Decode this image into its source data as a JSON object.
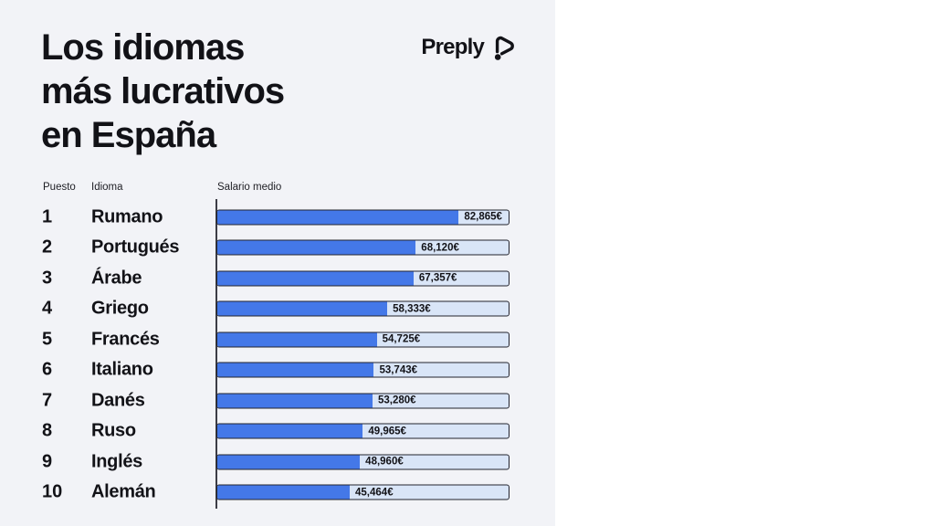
{
  "page": {
    "background": "#ffffff",
    "panel_background": "#f2f3f7"
  },
  "brand": {
    "name": "Preply"
  },
  "title": {
    "line1": "Los idiomas",
    "line2": "más lucrativos",
    "line3": "en España"
  },
  "table_headers": {
    "rank": "Puesto",
    "language": "Idioma",
    "salary": "Salario medio"
  },
  "chart_data": {
    "type": "bar",
    "orientation": "horizontal",
    "title": "Los idiomas más lucrativos en España",
    "xlabel": "Salario medio",
    "xlim": [
      0,
      100000
    ],
    "grid": false,
    "legend": false,
    "categories": [
      "Rumano",
      "Portugués",
      "Árabe",
      "Griego",
      "Francés",
      "Italiano",
      "Danés",
      "Ruso",
      "Inglés",
      "Alemán"
    ],
    "values": [
      82865,
      68120,
      67357,
      58333,
      54725,
      53743,
      53280,
      49965,
      48960,
      45464
    ],
    "rows": [
      {
        "rank": "1",
        "language": "Rumano",
        "value": 82865,
        "label": "82,865€"
      },
      {
        "rank": "2",
        "language": "Portugués",
        "value": 68120,
        "label": "68,120€"
      },
      {
        "rank": "3",
        "language": "Árabe",
        "value": 67357,
        "label": "67,357€"
      },
      {
        "rank": "4",
        "language": "Griego",
        "value": 58333,
        "label": "58,333€"
      },
      {
        "rank": "5",
        "language": "Francés",
        "value": 54725,
        "label": "54,725€"
      },
      {
        "rank": "6",
        "language": "Italiano",
        "value": 53743,
        "label": "53,743€"
      },
      {
        "rank": "7",
        "language": "Danés",
        "value": 53280,
        "label": "53,280€"
      },
      {
        "rank": "8",
        "language": "Ruso",
        "value": 49965,
        "label": "49,965€"
      },
      {
        "rank": "9",
        "language": "Inglés",
        "value": 48960,
        "label": "48,960€"
      },
      {
        "rank": "10",
        "language": "Alemán",
        "value": 45464,
        "label": "45,464€"
      }
    ],
    "colors": {
      "bar_fill": "#4478e8",
      "bar_track": "#d9e5f7",
      "bar_border": "#23242e",
      "axis_line": "#3c3c45",
      "panel_bg": "#f2f3f7",
      "text": "#121217"
    }
  }
}
